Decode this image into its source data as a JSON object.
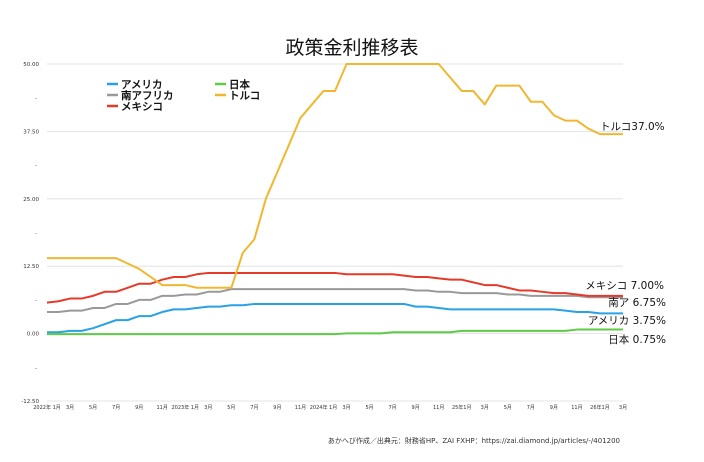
{
  "chart_data": {
    "type": "line",
    "title": "政策金利推移表",
    "ylim": [
      -12.5,
      50
    ],
    "y_ticks": [
      "50.00",
      "37.50",
      "25.00",
      "12.50",
      "0.00",
      "-12.50"
    ],
    "y_tick_values": [
      50,
      37.5,
      25,
      12.5,
      0,
      -12.5
    ],
    "x_tick_labels": [
      "2022年 1月",
      "3月",
      "5月",
      "7月",
      "9月",
      "11月",
      "2023年 1月",
      "3月",
      "5月",
      "7月",
      "9月",
      "11月",
      "2024年 1月",
      "3月",
      "5月",
      "7月",
      "9月",
      "11月",
      "25年1月",
      "3月",
      "5月",
      "7月",
      "9月",
      "11月",
      "26年1月",
      "3月"
    ],
    "x_tick_indices": [
      0,
      2,
      4,
      6,
      8,
      10,
      12,
      14,
      16,
      18,
      20,
      22,
      24,
      26,
      28,
      30,
      32,
      34,
      36,
      38,
      40,
      42,
      44,
      46,
      48,
      50
    ],
    "x_count": 51,
    "series": [
      {
        "name": "アメリカ",
        "color": "#2aa1e6",
        "end_label": "アメリカ 3.75%",
        "values": [
          0.25,
          0.25,
          0.5,
          0.5,
          1.0,
          1.75,
          2.5,
          2.5,
          3.25,
          3.25,
          4.0,
          4.5,
          4.5,
          4.75,
          5.0,
          5.0,
          5.25,
          5.25,
          5.5,
          5.5,
          5.5,
          5.5,
          5.5,
          5.5,
          5.5,
          5.5,
          5.5,
          5.5,
          5.5,
          5.5,
          5.5,
          5.5,
          5.0,
          5.0,
          4.75,
          4.5,
          4.5,
          4.5,
          4.5,
          4.5,
          4.5,
          4.5,
          4.5,
          4.5,
          4.5,
          4.25,
          4.0,
          4.0,
          3.75,
          3.75,
          3.75
        ]
      },
      {
        "name": "南アフリカ",
        "end_label": "南ア 6.75%",
        "color": "#999999",
        "values": [
          4.0,
          4.0,
          4.25,
          4.25,
          4.75,
          4.75,
          5.5,
          5.5,
          6.25,
          6.25,
          7.0,
          7.0,
          7.25,
          7.25,
          7.75,
          7.75,
          8.25,
          8.25,
          8.25,
          8.25,
          8.25,
          8.25,
          8.25,
          8.25,
          8.25,
          8.25,
          8.25,
          8.25,
          8.25,
          8.25,
          8.25,
          8.25,
          8.0,
          8.0,
          7.75,
          7.75,
          7.5,
          7.5,
          7.5,
          7.5,
          7.25,
          7.25,
          7.0,
          7.0,
          7.0,
          7.0,
          7.0,
          6.75,
          6.75,
          6.75,
          6.75
        ]
      },
      {
        "name": "メキシコ",
        "end_label": "メキシコ 7.00%",
        "color": "#e53a2a",
        "values": [
          5.75,
          6.0,
          6.5,
          6.5,
          7.0,
          7.75,
          7.75,
          8.5,
          9.25,
          9.25,
          10.0,
          10.5,
          10.5,
          11.0,
          11.25,
          11.25,
          11.25,
          11.25,
          11.25,
          11.25,
          11.25,
          11.25,
          11.25,
          11.25,
          11.25,
          11.25,
          11.0,
          11.0,
          11.0,
          11.0,
          11.0,
          10.75,
          10.5,
          10.5,
          10.25,
          10.0,
          10.0,
          9.5,
          9.0,
          9.0,
          8.5,
          8.0,
          8.0,
          7.75,
          7.5,
          7.5,
          7.25,
          7.0,
          7.0,
          7.0,
          7.0
        ]
      },
      {
        "name": "日本",
        "end_label": "日本 0.75%",
        "color": "#5ecb46",
        "values": [
          -0.1,
          -0.1,
          -0.1,
          -0.1,
          -0.1,
          -0.1,
          -0.1,
          -0.1,
          -0.1,
          -0.1,
          -0.1,
          -0.1,
          -0.1,
          -0.1,
          -0.1,
          -0.1,
          -0.1,
          -0.1,
          -0.1,
          -0.1,
          -0.1,
          -0.1,
          -0.1,
          -0.1,
          -0.1,
          -0.1,
          0.05,
          0.05,
          0.05,
          0.05,
          0.25,
          0.25,
          0.25,
          0.25,
          0.25,
          0.25,
          0.5,
          0.5,
          0.5,
          0.5,
          0.5,
          0.5,
          0.5,
          0.5,
          0.5,
          0.5,
          0.75,
          0.75,
          0.75,
          0.75,
          0.75
        ]
      },
      {
        "name": "トルコ",
        "end_label": "トルコ37.0%",
        "color": "#f2b731",
        "values": [
          14.0,
          14.0,
          14.0,
          14.0,
          14.0,
          14.0,
          14.0,
          13.0,
          12.0,
          10.5,
          9.0,
          9.0,
          9.0,
          8.5,
          8.5,
          8.5,
          8.5,
          15.0,
          17.5,
          25.0,
          30.0,
          35.0,
          40.0,
          42.5,
          45.0,
          45.0,
          50.0,
          50.0,
          50.0,
          50.0,
          50.0,
          50.0,
          50.0,
          50.0,
          50.0,
          47.5,
          45.0,
          45.0,
          42.5,
          46.0,
          46.0,
          46.0,
          43.0,
          43.0,
          40.5,
          39.5,
          39.5,
          38.0,
          37.0,
          37.0,
          37.0
        ]
      }
    ],
    "legend": [
      {
        "name": "アメリカ",
        "color": "#2aa1e6"
      },
      {
        "name": "日本",
        "color": "#5ecb46"
      },
      {
        "name": "南アフリカ",
        "color": "#999999"
      },
      {
        "name": "トルコ",
        "color": "#f2b731"
      },
      {
        "name": "メキシコ",
        "color": "#e53a2a"
      }
    ],
    "source": "あかへび作成／出典元：財務省HP、ZAI FXHP：https://zai.diamond.jp/articles/-/401200"
  }
}
